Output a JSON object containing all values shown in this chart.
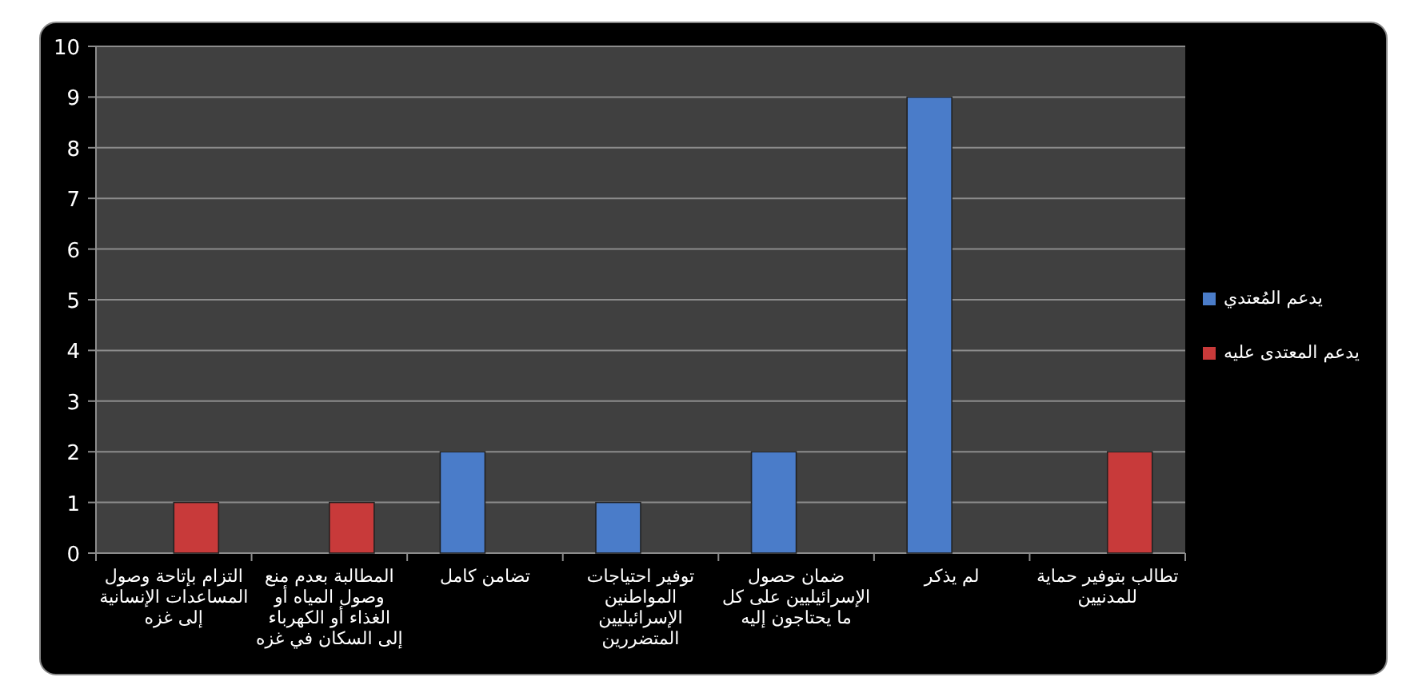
{
  "chart_data": {
    "type": "bar",
    "categories": [
      "التزام بإتاحة وصول المساعدات الإنسانية إلى غزه",
      "المطالبة بعدم منع وصول المياه أو الغذاء أو الكهرباء إلى السكان في غزه",
      "تضامن كامل",
      "توفير احتياجات المواطنين الإسرائيليين المتضررين",
      "ضمان حصول الإسرائيليين على كل ما يحتاجون إليه",
      "لم يذكر",
      "تطالب بتوفير حماية للمدنيين"
    ],
    "series": [
      {
        "name": "يدعم المُعتدي",
        "color": "#4a7cc9",
        "values": [
          0,
          0,
          2,
          1,
          2,
          9,
          0
        ]
      },
      {
        "name": "يدعم المعتدى عليه",
        "color": "#c83a3a",
        "values": [
          1,
          1,
          0,
          0,
          0,
          0,
          2
        ]
      }
    ],
    "ylim": [
      0,
      10
    ],
    "yticks": [
      0,
      1,
      2,
      3,
      4,
      5,
      6,
      7,
      8,
      9,
      10
    ],
    "grid": "y",
    "legend": "right"
  }
}
